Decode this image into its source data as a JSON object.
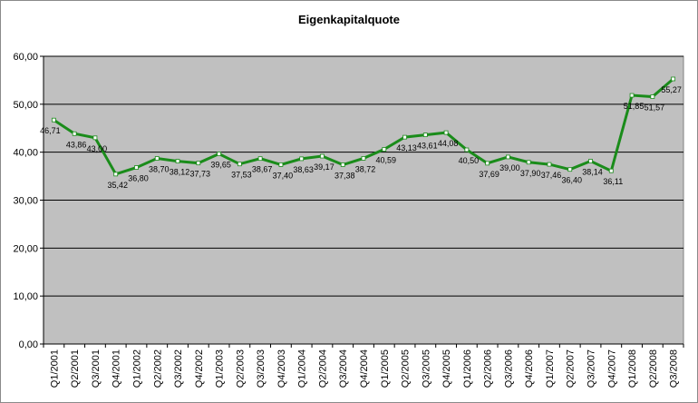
{
  "chart_data": {
    "type": "line",
    "title": "Eigenkapitalquote",
    "xlabel": "",
    "ylabel": "",
    "ylim": [
      0,
      60
    ],
    "y_ticks": [
      "0,00",
      "10,00",
      "20,00",
      "30,00",
      "40,00",
      "50,00",
      "60,00"
    ],
    "grid": true,
    "legend": "none",
    "plot_background": "#c0c0c0",
    "line_color": "#1a8c1a",
    "categories": [
      "Q1/2001",
      "Q2/2001",
      "Q3/2001",
      "Q4/2001",
      "Q1/2002",
      "Q2/2002",
      "Q3/2002",
      "Q4/2002",
      "Q1/2003",
      "Q2/2003",
      "Q3/2003",
      "Q4/2003",
      "Q1/2004",
      "Q2/2004",
      "Q3/2004",
      "Q4/2004",
      "Q1/2005",
      "Q2/2005",
      "Q3/2005",
      "Q4/2005",
      "Q1/2006",
      "Q2/2006",
      "Q3/2006",
      "Q4/2006",
      "Q1/2007",
      "Q2/2007",
      "Q3/2007",
      "Q4/2007",
      "Q1/2008",
      "Q2/2008",
      "Q3/2008"
    ],
    "values": [
      46.71,
      43.86,
      43.0,
      35.42,
      36.8,
      38.7,
      38.12,
      37.73,
      39.65,
      37.53,
      38.67,
      37.4,
      38.63,
      39.17,
      37.38,
      38.72,
      40.59,
      43.13,
      43.61,
      44.08,
      40.5,
      37.69,
      39.0,
      37.9,
      37.46,
      36.4,
      38.14,
      36.11,
      51.85,
      51.57,
      55.27
    ],
    "value_labels": [
      "46,71",
      "43,86",
      "43,00",
      "35,42",
      "36,80",
      "38,70",
      "38,12",
      "37,73",
      "39,65",
      "37,53",
      "38,67",
      "37,40",
      "38,63",
      "39,17",
      "37,38",
      "38,72",
      "40,59",
      "43,13",
      "43,61",
      "44,08",
      "40,50",
      "37,69",
      "39,00",
      "37,90",
      "37,46",
      "36,40",
      "38,14",
      "36,11",
      "51,85",
      "51,57",
      "55,27"
    ]
  }
}
